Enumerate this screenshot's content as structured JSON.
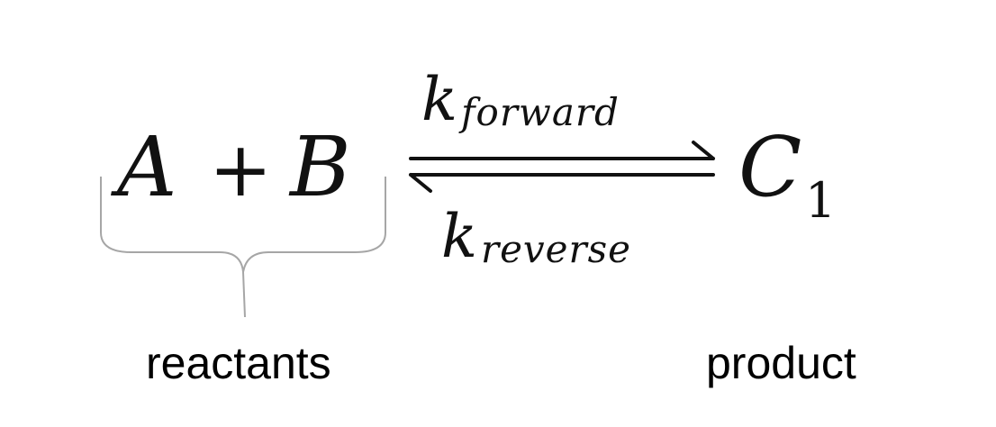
{
  "equation": {
    "reactant_a": "A",
    "plus": "+",
    "reactant_b": "B",
    "product_symbol": "C",
    "product_subscript": "1",
    "forward_rate_symbol": "k",
    "forward_rate_subscript": "forward",
    "reverse_rate_symbol": "k",
    "reverse_rate_subscript": "reverse"
  },
  "labels": {
    "reactants": "reactants",
    "product": "product"
  },
  "colors": {
    "text": "#111111",
    "arrow": "#111111",
    "brace": "#a6a6a6",
    "background": "#ffffff"
  },
  "icons": {
    "equilibrium_arrows": "harpoon-equilibrium-icon",
    "reactant_brace": "curly-brace-icon"
  }
}
